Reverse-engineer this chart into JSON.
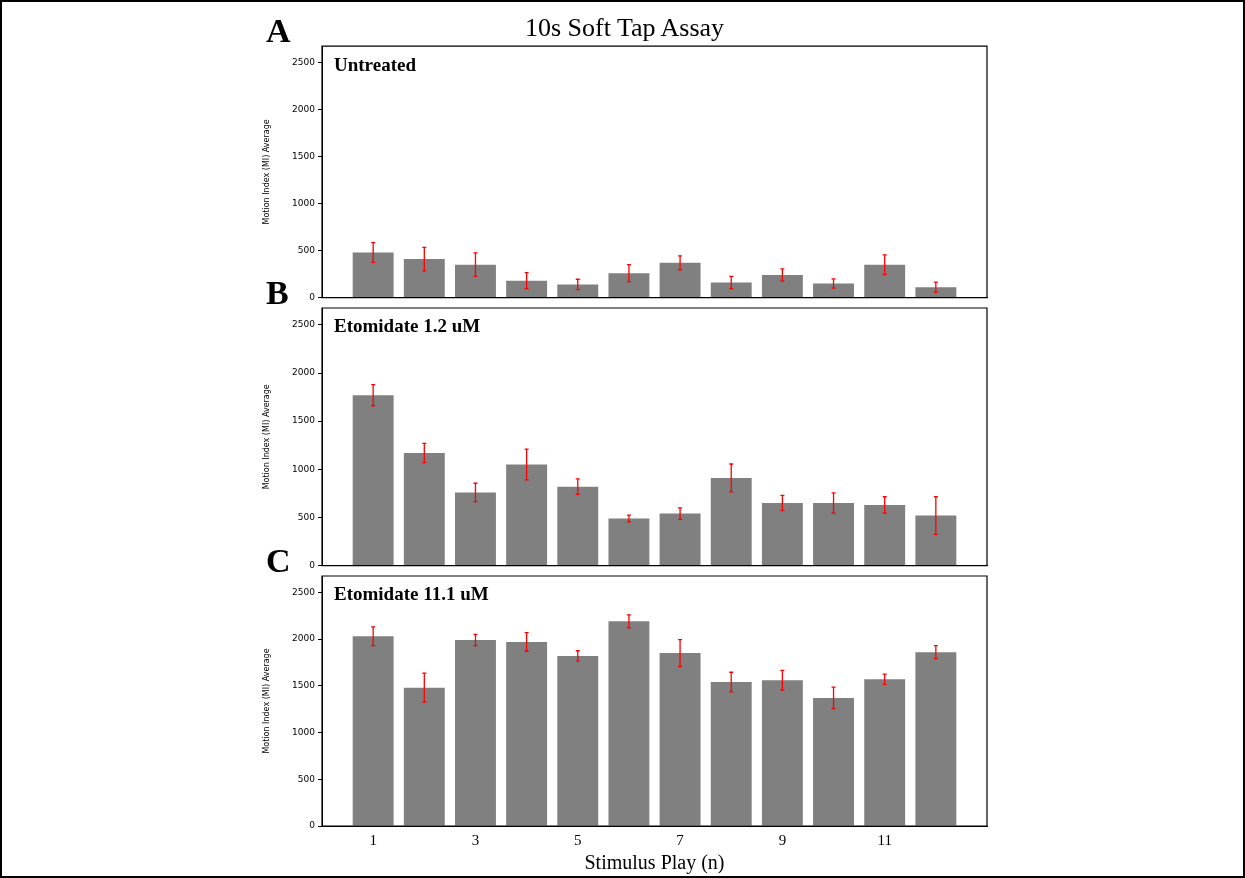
{
  "chart_data": [
    {
      "type": "bar",
      "title": "10s Soft Tap Assay",
      "ylabel": "Motion Index (MI) Average",
      "annotations": [
        "A",
        "Untreated"
      ],
      "x": [
        1,
        2,
        3,
        4,
        5,
        6,
        7,
        8,
        9,
        10,
        11,
        12
      ],
      "color": "#808080",
      "values": [
        480,
        410,
        350,
        180,
        140,
        260,
        370,
        160,
        240,
        150,
        350,
        110
      ],
      "errors": [
        105,
        125,
        125,
        85,
        55,
        90,
        75,
        65,
        65,
        50,
        105,
        55
      ],
      "xlim": [
        0,
        13
      ],
      "xticks": [
        1,
        3,
        5,
        7,
        9,
        11
      ],
      "ylim": [
        0,
        2675
      ],
      "yticks": [
        0,
        500,
        1000,
        1500,
        2000,
        2500
      ],
      "grid": false,
      "legend": false,
      "tick_labels": "y"
    },
    {
      "type": "bar",
      "ylabel": "Motion Index (MI) Average",
      "annotations": [
        "B",
        "Etomidate 1.2 uM"
      ],
      "x": [
        1,
        2,
        3,
        4,
        5,
        6,
        7,
        8,
        9,
        10,
        11,
        12
      ],
      "color": "#808080",
      "values": [
        1770,
        1170,
        760,
        1050,
        820,
        490,
        540,
        910,
        650,
        650,
        630,
        520
      ],
      "errors": [
        110,
        100,
        95,
        160,
        80,
        35,
        60,
        145,
        80,
        105,
        85,
        195
      ],
      "xlim": [
        0,
        13
      ],
      "xticks": [
        1,
        3,
        5,
        7,
        9,
        11
      ],
      "ylim": [
        0,
        2675
      ],
      "yticks": [
        0,
        500,
        1000,
        1500,
        2000,
        2500
      ],
      "grid": false,
      "legend": false,
      "tick_labels": "y"
    },
    {
      "type": "bar",
      "xlabel": "Stimulus Play (n)",
      "ylabel": "Motion Index (MI) Average",
      "annotations": [
        "C",
        "Etomidate 11.1 uM"
      ],
      "x": [
        1,
        2,
        3,
        4,
        5,
        6,
        7,
        8,
        9,
        10,
        11,
        12
      ],
      "color": "#808080",
      "values": [
        2030,
        1480,
        1990,
        1970,
        1820,
        2190,
        1850,
        1540,
        1560,
        1370,
        1570,
        1860
      ],
      "errors": [
        100,
        155,
        60,
        100,
        55,
        70,
        145,
        105,
        105,
        115,
        55,
        70
      ],
      "xlim": [
        0,
        13
      ],
      "xticks": [
        1,
        3,
        5,
        7,
        9,
        11
      ],
      "ylim": [
        0,
        2675
      ],
      "yticks": [
        0,
        500,
        1000,
        1500,
        2000,
        2500
      ],
      "grid": false,
      "legend": false
    }
  ]
}
